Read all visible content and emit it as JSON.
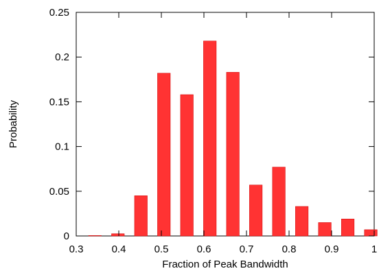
{
  "chart_data": {
    "type": "bar",
    "title": "",
    "xlabel": "Fraction of Peak Bandwidth",
    "ylabel": "Probability",
    "xlim": [
      0.3,
      1.0
    ],
    "ylim": [
      0,
      0.25
    ],
    "x_ticks": [
      0.3,
      0.4,
      0.5,
      0.6,
      0.7,
      0.8,
      0.9,
      1.0
    ],
    "x_tick_labels": [
      "0.3",
      "0.4",
      "0.5",
      "0.6",
      "0.7",
      "0.8",
      "0.9",
      "1"
    ],
    "y_ticks": [
      0,
      0.05,
      0.1,
      0.15,
      0.2,
      0.25
    ],
    "y_tick_labels": [
      "0",
      "0.05",
      "0.1",
      "0.15",
      "0.2",
      "0.25"
    ],
    "bar_color": "#ff3333",
    "bar_edge_color": "#cc0000",
    "grid": false,
    "legend": false,
    "bar_width": 0.03,
    "series": [
      {
        "x": [
          0.344,
          0.398,
          0.452,
          0.506,
          0.56,
          0.614,
          0.668,
          0.722,
          0.776,
          0.83,
          0.884,
          0.938,
          0.992
        ],
        "values": [
          0.0005,
          0.0025,
          0.045,
          0.182,
          0.158,
          0.218,
          0.183,
          0.057,
          0.077,
          0.033,
          0.015,
          0.019,
          0.007
        ]
      }
    ]
  }
}
